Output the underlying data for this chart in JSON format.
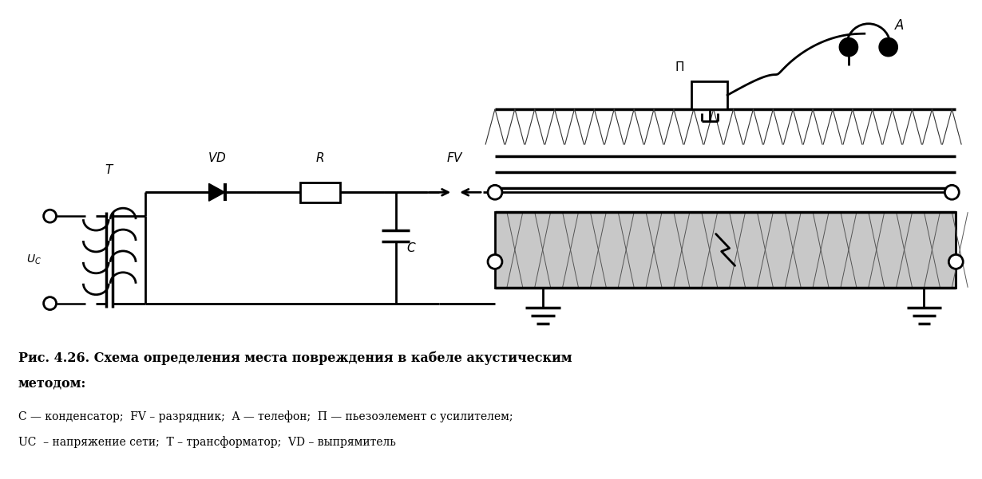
{
  "bg_color": "#ffffff",
  "fig_width": 12.3,
  "fig_height": 6.01,
  "caption_line1": "Рис. 4.26. Схема определения места повреждения в кабеле акустическим",
  "caption_line2": "методом:",
  "legend_line1": "C — конденсатор;  FV – разрядник;  A — телефон;  П — пьезоэлемент с усилителем;",
  "legend_line2": "UС  – напряжение сети;  T – трансформатор;  VD – выпрямитель"
}
